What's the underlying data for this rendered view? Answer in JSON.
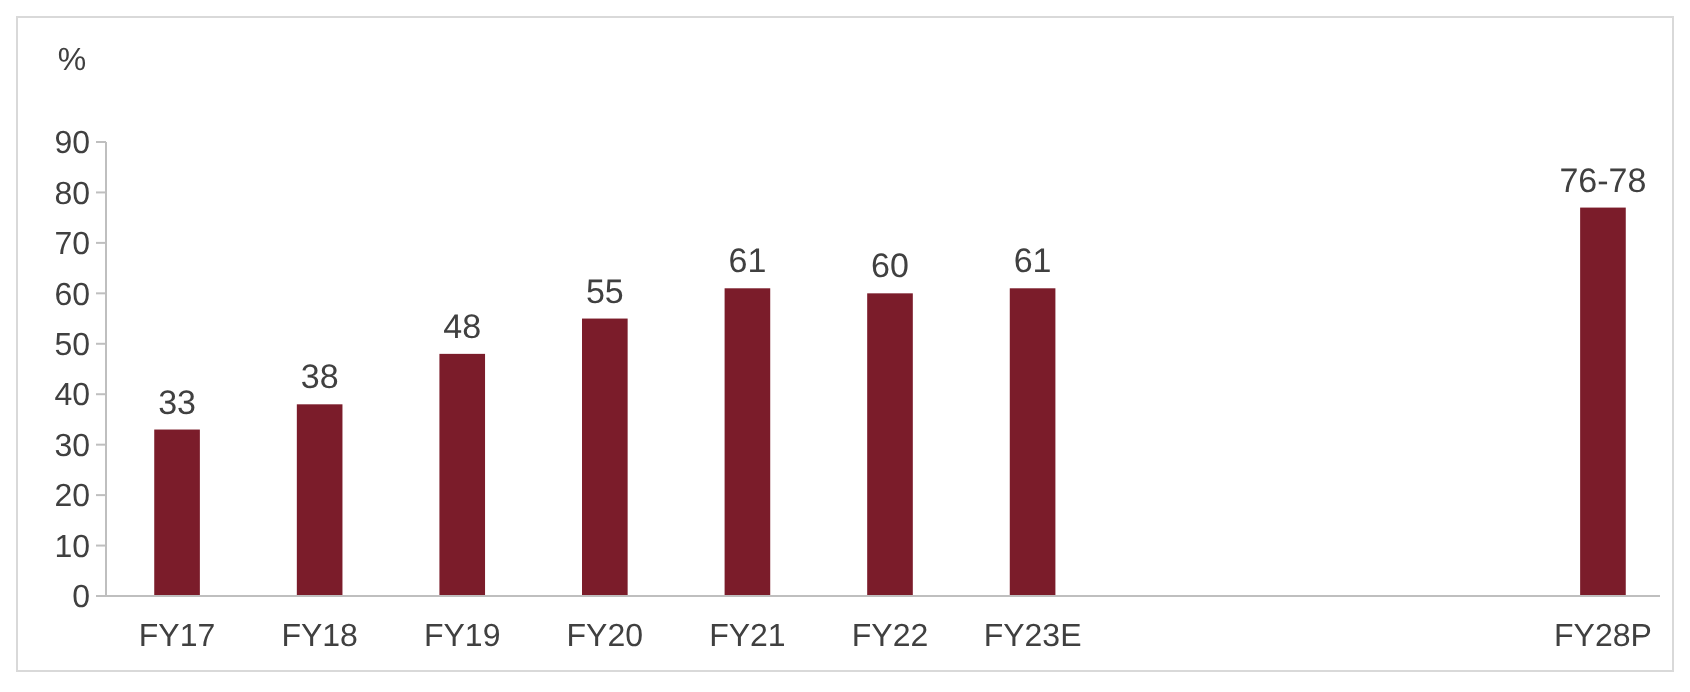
{
  "chart_data": {
    "type": "bar",
    "ylabel": "%",
    "categories": [
      "FY17",
      "FY18",
      "FY19",
      "FY20",
      "FY21",
      "FY22",
      "FY23E",
      null,
      null,
      null,
      "FY28P"
    ],
    "values": [
      33,
      38,
      48,
      55,
      61,
      60,
      61,
      null,
      null,
      null,
      77
    ],
    "value_labels": [
      "33",
      "38",
      "48",
      "55",
      "61",
      "60",
      "61",
      null,
      null,
      null,
      "76-78"
    ],
    "color": "#7b1c2a",
    "ylim": [
      0,
      90
    ],
    "yticks": [
      0,
      10,
      20,
      30,
      40,
      50,
      60,
      70,
      80,
      90
    ],
    "grid": false
  }
}
